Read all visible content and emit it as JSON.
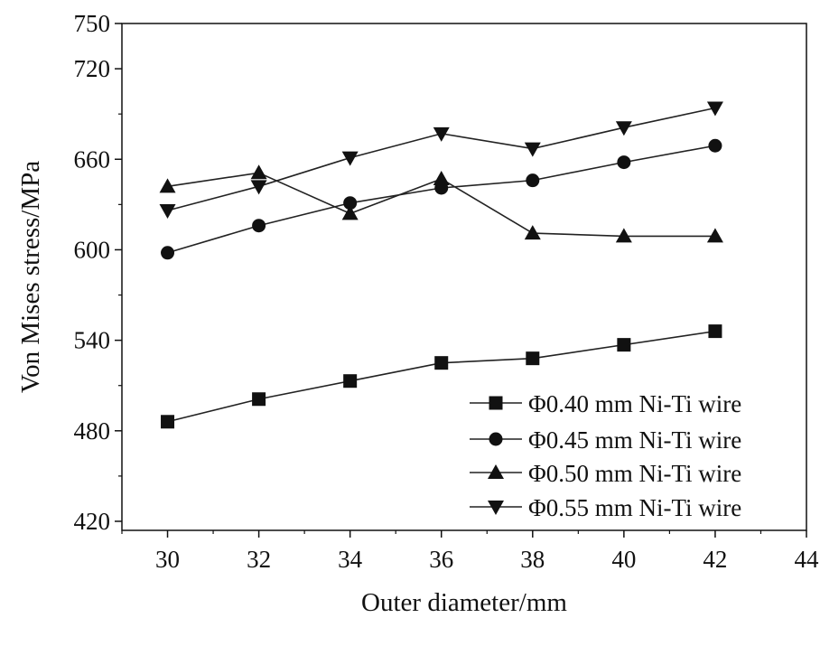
{
  "chart_data": {
    "type": "line",
    "xlabel": "Outer diameter/mm",
    "ylabel": "Von Mises stress/MPa",
    "xlim": [
      29,
      44
    ],
    "ylim": [
      414,
      750
    ],
    "x_ticks": [
      30,
      32,
      34,
      36,
      38,
      40,
      42,
      44
    ],
    "y_ticks": [
      420,
      480,
      540,
      600,
      660,
      720,
      750
    ],
    "legend_position": "bottom-right",
    "grid": false,
    "x": [
      30,
      32,
      34,
      36,
      38,
      40,
      42
    ],
    "series": [
      {
        "name": "Φ0.40 mm Ni-Ti wire",
        "marker": "square",
        "values": [
          486,
          501,
          513,
          525,
          528,
          537,
          546
        ]
      },
      {
        "name": "Φ0.45 mm Ni-Ti wire",
        "marker": "circle",
        "values": [
          598,
          616,
          631,
          641,
          646,
          658,
          669
        ]
      },
      {
        "name": "Φ0.50 mm Ni-Ti wire",
        "marker": "triangle-up",
        "values": [
          642,
          651,
          624,
          647,
          611,
          609,
          609
        ]
      },
      {
        "name": "Φ0.55 mm Ni-Ti wire",
        "marker": "triangle-down",
        "values": [
          626,
          642,
          661,
          677,
          667,
          681,
          694
        ]
      }
    ]
  }
}
